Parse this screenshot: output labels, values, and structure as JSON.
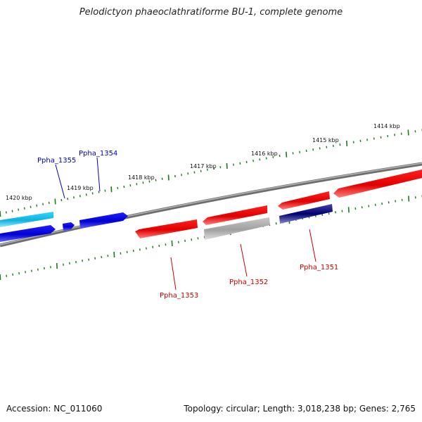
{
  "title": "Pelodictyon phaeoclathratiforme BU-1, complete genome",
  "footer": {
    "accession": "Accession: NC_011060",
    "summary": "Topology: circular; Length: 3,018,238 bp; Genes: 2,765"
  },
  "scale_labels": [
    "1414 kbp",
    "1415 kbp",
    "1416 kbp",
    "1417 kbp",
    "1418 kbp",
    "1419 kbp",
    "1420 kbp"
  ],
  "gene_labels": [
    {
      "text": "Ppha_1355",
      "color": "#0000bb"
    },
    {
      "text": "Ppha_1354",
      "color": "#0000bb"
    },
    {
      "text": "Ppha_1353",
      "color": "#cc0000"
    },
    {
      "text": "Ppha_1352",
      "color": "#cc0000"
    },
    {
      "text": "Ppha_1351",
      "color": "#cc0000"
    }
  ],
  "colors": {
    "backbone": "#7a7a7a",
    "tick": "#1a7a1a",
    "forward_red": "#ee0000",
    "reverse_blue": "#0000dd",
    "light_blue": "#22c8ee",
    "grey": "#b0b0b0",
    "navy": "#000088"
  }
}
